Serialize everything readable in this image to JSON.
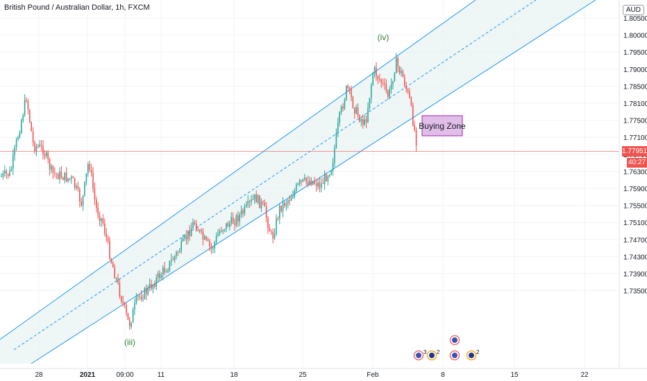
{
  "title": "British Pound / Australian Dollar, 1h, FXCM",
  "currency": "AUD",
  "current_price": "1.77951",
  "countdown": "40:27",
  "colors": {
    "up": "#26a69a",
    "down": "#ef5350",
    "channel": "#2196f3",
    "channel_fill": "#e8f3f3",
    "wave_label": "#2e7d32",
    "zone_fill": "#e1bee7",
    "zone_border": "#9c27b0"
  },
  "chart_data": {
    "type": "candlestick",
    "y_ticks": [
      "1.80500",
      "1.80000",
      "1.79500",
      "1.79000",
      "1.78500",
      "1.78100",
      "1.77500",
      "1.77100",
      "1.76700",
      "1.76300",
      "1.75900",
      "1.75500",
      "1.75100",
      "1.74700",
      "1.74300",
      "1.73900",
      "1.73500"
    ],
    "x_ticks": [
      "28",
      "2021",
      "09:00",
      "11",
      "18",
      "25",
      "Feb",
      "8",
      "15",
      "22"
    ],
    "ylim": [
      1.735,
      1.807
    ],
    "annotations": {
      "wave_iii": "(iii)",
      "wave_iv": "(iv)",
      "zone": "Buying Zone"
    },
    "events": [
      {
        "flag": "uk",
        "count": "3"
      },
      {
        "flag": "au",
        "count": "2"
      },
      {
        "flag": "uk",
        "count": ""
      },
      {
        "flag": "au",
        "count": "2"
      }
    ]
  }
}
